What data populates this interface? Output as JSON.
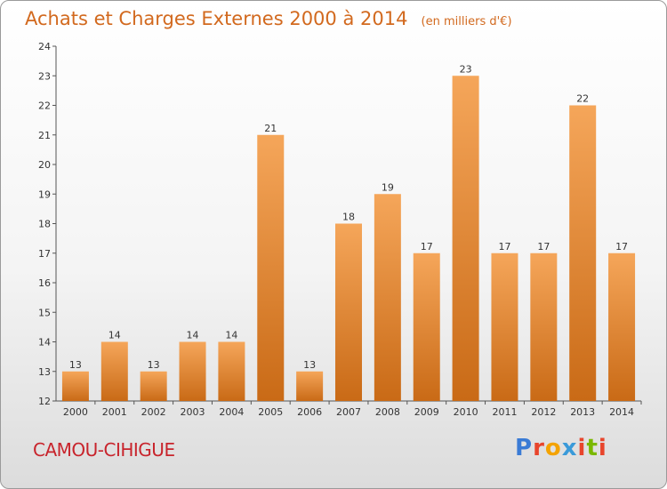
{
  "title": "Achats et Charges Externes 2000 à 2014",
  "subtitle": "(en milliers d'€)",
  "commune": "CAMOU-CIHIGUE",
  "logo": {
    "text": "Proxiti",
    "colors": [
      "#3a7bd5",
      "#e8452c",
      "#f4a300",
      "#3a9ad9",
      "#e8452c",
      "#7ab800",
      "#e8452c"
    ]
  },
  "colors": {
    "title": "#d2691e",
    "commune": "#c8242c",
    "bar_light": "#f5a65a",
    "bar_dark": "#c96a16"
  },
  "chart_data": {
    "type": "bar",
    "categories": [
      "2000",
      "2001",
      "2002",
      "2003",
      "2004",
      "2005",
      "2006",
      "2007",
      "2008",
      "2009",
      "2010",
      "2011",
      "2012",
      "2013",
      "2014"
    ],
    "values": [
      13,
      14,
      13,
      14,
      14,
      21,
      13,
      18,
      19,
      17,
      23,
      17,
      17,
      22,
      17
    ],
    "title": "Achats et Charges Externes 2000 à 2014",
    "subtitle": "(en milliers d'€)",
    "ylim": [
      12,
      24
    ],
    "yticks": [
      12,
      13,
      14,
      15,
      16,
      17,
      18,
      19,
      20,
      21,
      22,
      23,
      24
    ],
    "grid": false,
    "data_labels": true
  }
}
